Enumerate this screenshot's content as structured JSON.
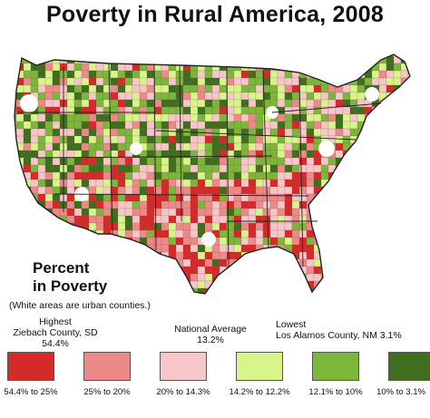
{
  "title": "Poverty in Rural America, 2008",
  "legend": {
    "heading_line1": "Percent",
    "heading_line2": "in Poverty",
    "note": "(White areas are urban counties.)",
    "highest": {
      "label": "Highest",
      "place": "Ziebach County, SD",
      "value": "54.4%"
    },
    "average": {
      "label": "National Average",
      "value": "13.2%"
    },
    "lowest": {
      "label": "Lowest",
      "place": "Los Alamos County, NM 3.1%"
    },
    "bins": [
      {
        "label": "54.4% to 25%",
        "color": "#d42a2a"
      },
      {
        "label": "25% to 20%",
        "color": "#ec8a8a"
      },
      {
        "label": "20% to 14.3%",
        "color": "#f7c6c9"
      },
      {
        "label": "14.2% to 12.2%",
        "color": "#d8f58c"
      },
      {
        "label": "12.1% to 10%",
        "color": "#7cb63a"
      },
      {
        "label": "10% to 3.1%",
        "color": "#3f6e1e"
      }
    ]
  }
}
